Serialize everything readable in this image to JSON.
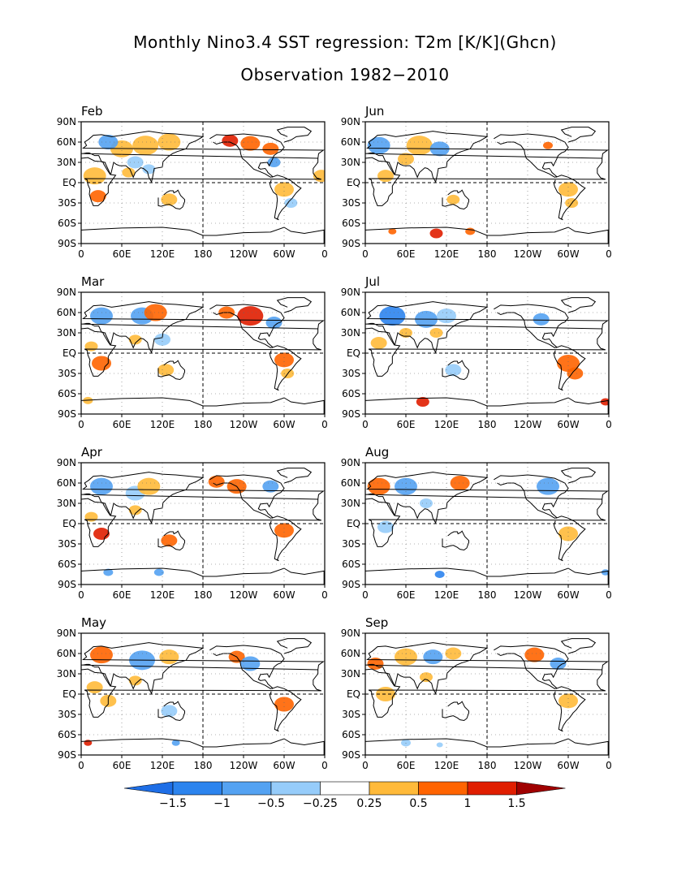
{
  "figure": {
    "title": "Monthly Nino3.4 SST regression: T2m [K/K](Ghcn)",
    "subtitle": "Observation 1982−2010"
  },
  "axes": {
    "y_tick_labels": [
      "90N",
      "60N",
      "30N",
      "EQ",
      "30S",
      "60S",
      "90S"
    ],
    "x_tick_labels": [
      "0",
      "60E",
      "120E",
      "180",
      "120W",
      "60W",
      "0"
    ]
  },
  "panels": [
    {
      "label": "Feb"
    },
    {
      "label": "Jun"
    },
    {
      "label": "Mar"
    },
    {
      "label": "Jul"
    },
    {
      "label": "Apr"
    },
    {
      "label": "Aug"
    },
    {
      "label": "May"
    },
    {
      "label": "Sep"
    }
  ],
  "colorbar": {
    "labels": [
      "−1.5",
      "−1",
      "−0.5",
      "−0.25",
      "0.25",
      "0.5",
      "1",
      "1.5"
    ],
    "colors": [
      "#1e6ee6",
      "#2c84ee",
      "#54a2f2",
      "#96ccfa",
      "#ffffff",
      "#ffba3a",
      "#ff6400",
      "#e01e00",
      "#a00000"
    ]
  },
  "colors": {
    "cold_strong": "#2c84ee",
    "cold_mid": "#54a2f2",
    "cold_weak": "#96ccfa",
    "warm_weak": "#ffba3a",
    "warm_mid": "#ff6400",
    "warm_strong": "#e01e00"
  }
}
